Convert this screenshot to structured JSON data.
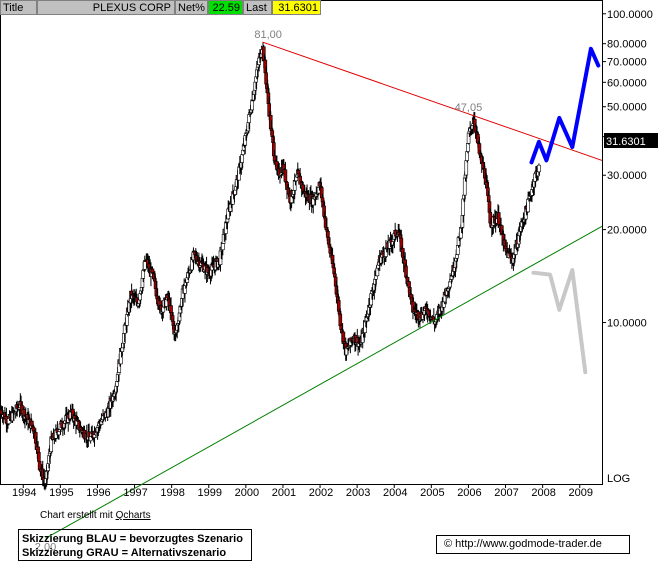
{
  "header": {
    "title_label": "Title",
    "symbol": "PLEXUS CORP",
    "change_label": "Net%",
    "change_value": "22.59",
    "last_label": "Last",
    "last_value": "31.6301",
    "change_color": "#00e000",
    "last_color": "#ffff00"
  },
  "chart_data": {
    "type": "candlestick",
    "title": "PLEXUS CORP",
    "y_scale": "log",
    "ylim": [
      3.0,
      110.0
    ],
    "xlim": [
      1993.4,
      2009.6
    ],
    "y_ticks": [
      "100.0000",
      "80.0000",
      "70.0000",
      "60.0000",
      "50.0000",
      "40.0000",
      "30.0000",
      "20.0000",
      "10.0000"
    ],
    "y_tick_values": [
      100,
      80,
      70,
      60,
      50,
      40,
      30,
      20,
      10
    ],
    "x_ticks": [
      "1994",
      "1995",
      "1996",
      "1997",
      "1998",
      "1999",
      "2000",
      "2001",
      "2002",
      "2003",
      "2004",
      "2005",
      "2006",
      "2007",
      "2008",
      "2009"
    ],
    "log_label": "LOG",
    "last_price_label": "31.6301",
    "last_price": 31.63,
    "price_path": [
      [
        1993.4,
        5.2
      ],
      [
        1993.6,
        4.8
      ],
      [
        1993.9,
        5.4
      ],
      [
        1994.1,
        4.9
      ],
      [
        1994.3,
        4.5
      ],
      [
        1994.45,
        3.4
      ],
      [
        1994.6,
        3.0
      ],
      [
        1994.75,
        4.1
      ],
      [
        1995.0,
        4.6
      ],
      [
        1995.3,
        5.1
      ],
      [
        1995.5,
        4.6
      ],
      [
        1995.8,
        4.2
      ],
      [
        1996.0,
        4.6
      ],
      [
        1996.3,
        5.2
      ],
      [
        1996.5,
        6.3
      ],
      [
        1996.7,
        9.0
      ],
      [
        1996.9,
        12.2
      ],
      [
        1997.1,
        11.6
      ],
      [
        1997.3,
        16.0
      ],
      [
        1997.5,
        14.0
      ],
      [
        1997.7,
        11.0
      ],
      [
        1997.9,
        12.0
      ],
      [
        1998.1,
        9.0
      ],
      [
        1998.3,
        12.5
      ],
      [
        1998.6,
        16.5
      ],
      [
        1998.8,
        15.5
      ],
      [
        1999.0,
        14.5
      ],
      [
        1999.3,
        16.0
      ],
      [
        1999.5,
        22.0
      ],
      [
        1999.8,
        30.0
      ],
      [
        2000.0,
        40.0
      ],
      [
        2000.2,
        55.0
      ],
      [
        2000.35,
        70.0
      ],
      [
        2000.45,
        80.0
      ],
      [
        2000.55,
        60.0
      ],
      [
        2000.7,
        40.0
      ],
      [
        2000.85,
        30.0
      ],
      [
        2001.0,
        32.0
      ],
      [
        2001.2,
        25.0
      ],
      [
        2001.4,
        30.0
      ],
      [
        2001.6,
        26.0
      ],
      [
        2001.8,
        25.0
      ],
      [
        2002.0,
        28.0
      ],
      [
        2002.2,
        19.0
      ],
      [
        2002.4,
        14.0
      ],
      [
        2002.55,
        10.0
      ],
      [
        2002.7,
        8.0
      ],
      [
        2002.9,
        9.0
      ],
      [
        2003.1,
        8.5
      ],
      [
        2003.3,
        11.0
      ],
      [
        2003.6,
        16.0
      ],
      [
        2003.9,
        18.0
      ],
      [
        2004.1,
        20.0
      ],
      [
        2004.3,
        15.0
      ],
      [
        2004.5,
        11.0
      ],
      [
        2004.7,
        10.5
      ],
      [
        2004.9,
        11.0
      ],
      [
        2005.1,
        10.0
      ],
      [
        2005.3,
        11.5
      ],
      [
        2005.6,
        15.0
      ],
      [
        2005.8,
        20.0
      ],
      [
        2006.0,
        40.0
      ],
      [
        2006.15,
        46.0
      ],
      [
        2006.3,
        35.0
      ],
      [
        2006.45,
        30.0
      ],
      [
        2006.6,
        21.0
      ],
      [
        2006.8,
        22.0
      ],
      [
        2007.0,
        17.0
      ],
      [
        2007.2,
        16.0
      ],
      [
        2007.4,
        20.0
      ],
      [
        2007.6,
        24.0
      ],
      [
        2007.8,
        30.0
      ],
      [
        2007.9,
        31.63
      ]
    ],
    "lines": [
      {
        "name": "resistance",
        "color": "#e00000",
        "from": [
          2000.45,
          81.0
        ],
        "to": [
          2009.6,
          33.5
        ]
      },
      {
        "name": "support",
        "color": "#008000",
        "from": [
          1994.6,
          2.0
        ],
        "to": [
          2009.6,
          20.5
        ]
      }
    ],
    "scenarios": [
      {
        "name": "Skizzierung BLAU",
        "color": "#0000ff",
        "points": [
          [
            2007.7,
            33.0
          ],
          [
            2007.9,
            38.5
          ],
          [
            2008.1,
            33.5
          ],
          [
            2008.45,
            46.0
          ],
          [
            2008.8,
            37.0
          ],
          [
            2009.3,
            77.0
          ],
          [
            2009.5,
            68.0
          ]
        ]
      },
      {
        "name": "Skizzierung GRAU",
        "color": "#c8c8c8",
        "points": [
          [
            2007.75,
            14.5
          ],
          [
            2008.2,
            14.3
          ],
          [
            2008.45,
            11.0
          ],
          [
            2008.8,
            14.8
          ],
          [
            2009.15,
            6.9
          ]
        ]
      }
    ],
    "annotations": [
      {
        "text": "81,00",
        "x": 2000.6,
        "y": 81.0
      },
      {
        "text": "47,05",
        "x": 2006.0,
        "y": 47.05
      },
      {
        "text": "2,00",
        "x": 1994.6,
        "y": 2.0
      }
    ]
  },
  "footer": {
    "credit_prefix": "Chart erstellt mit ",
    "credit_link": "Qcharts",
    "scenario_blue": "Skizzierung BLAU = bevorzugtes Szenario",
    "scenario_grey": "Skizzierung GRAU = Alternativszenario",
    "copyright_symbol": "©",
    "website": "http://www.godmode-trader.de"
  }
}
